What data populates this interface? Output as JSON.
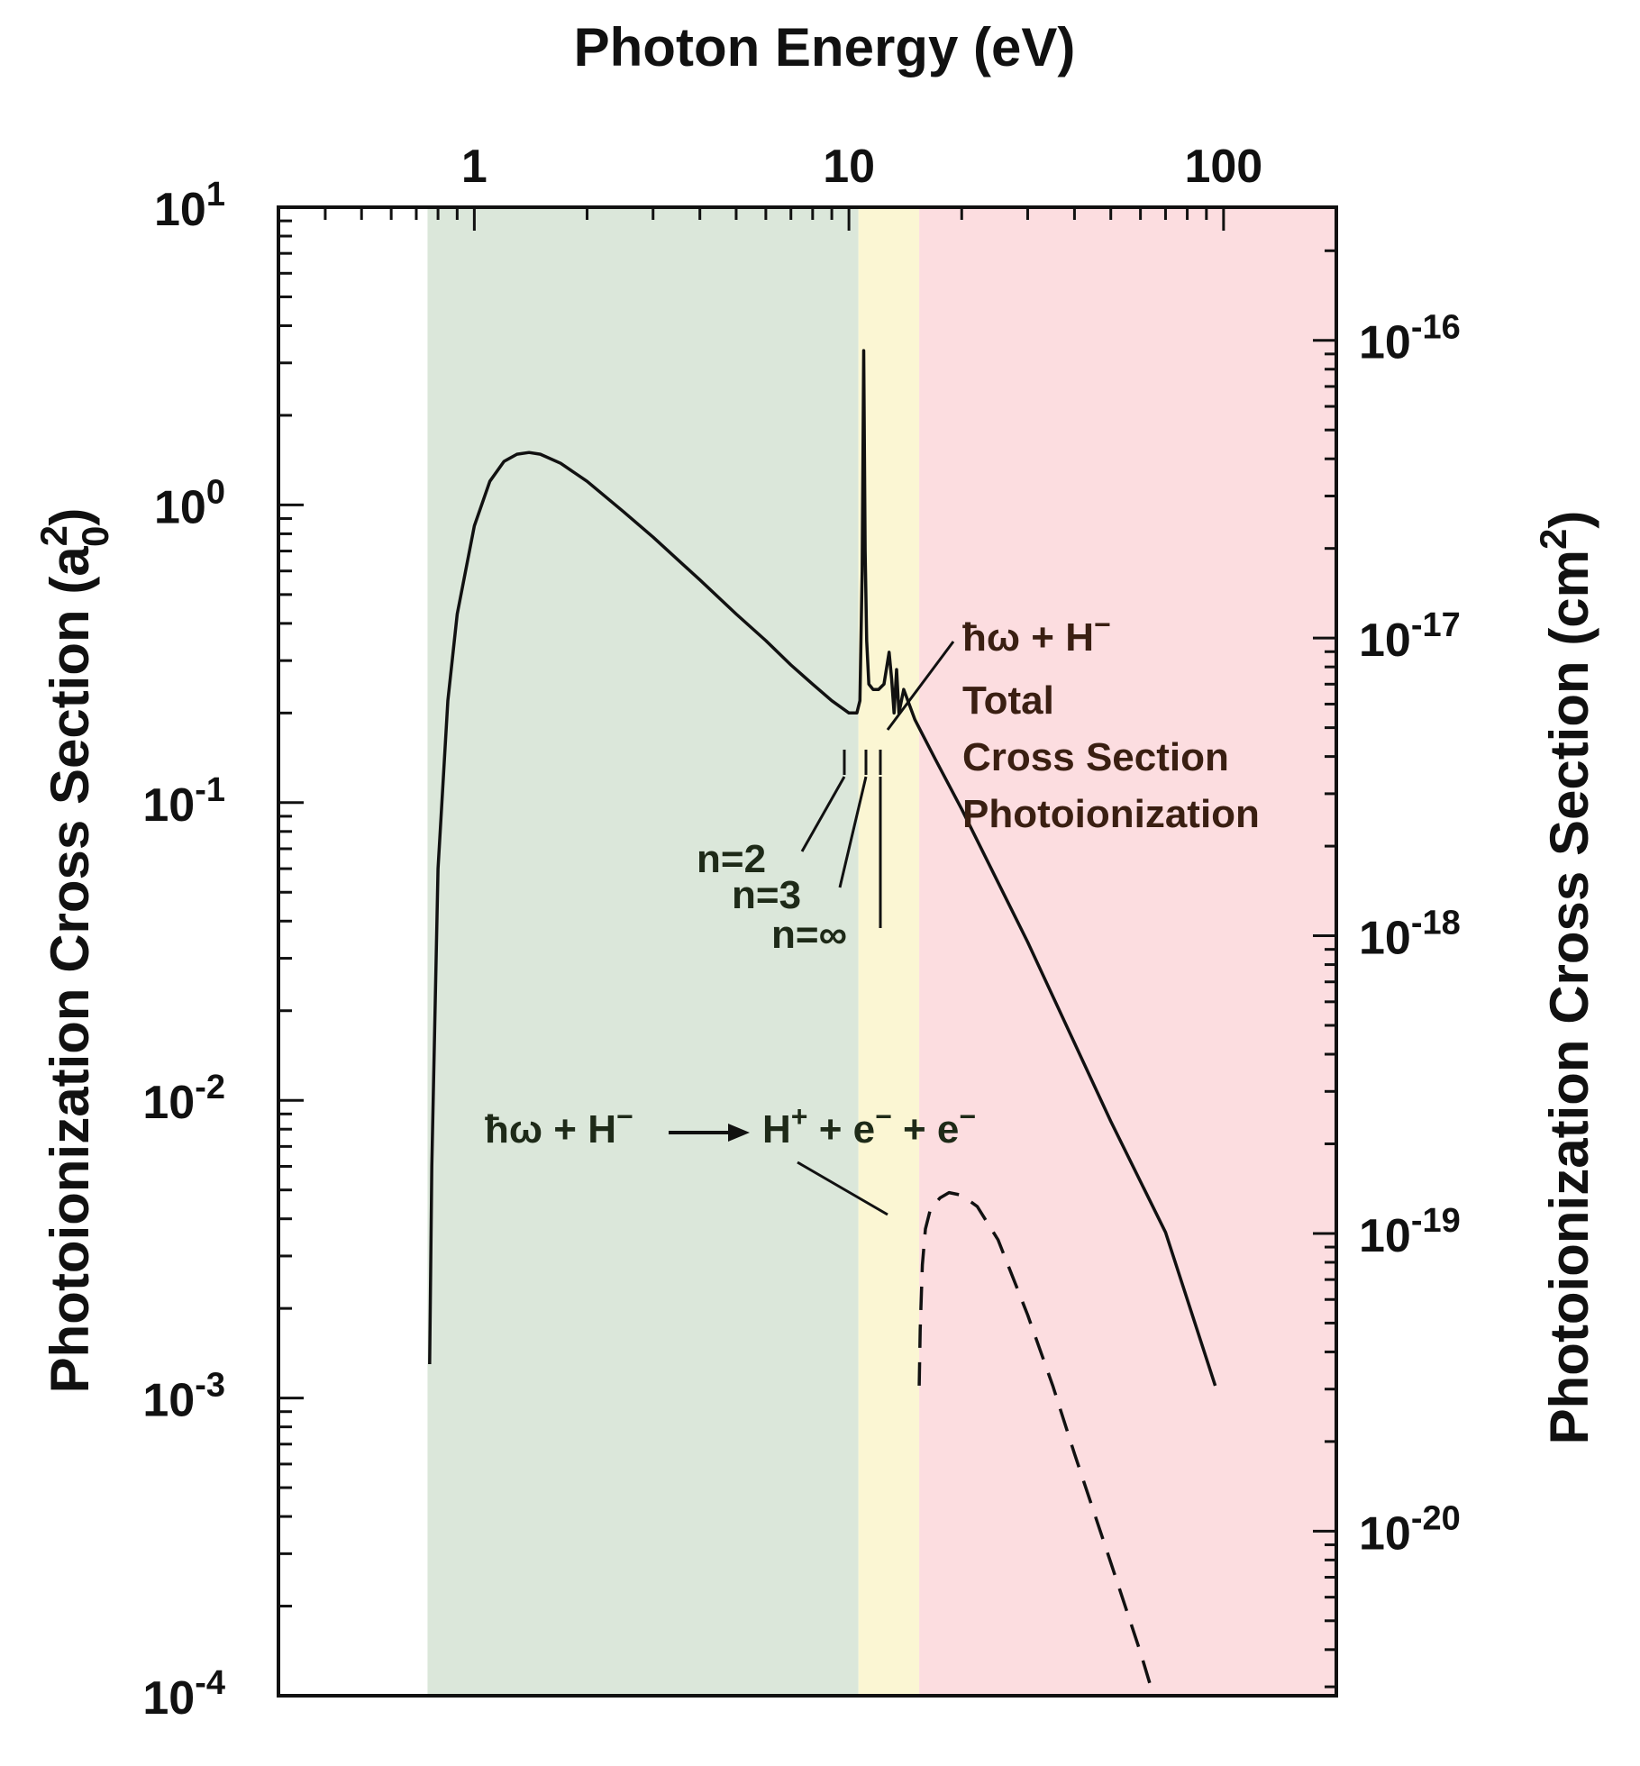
{
  "chart_data": {
    "type": "line",
    "title": "Photon Energy (eV)",
    "xlabel": "Photon Energy (eV)",
    "ylabel_left_main": "Photoionization Cross Section (a",
    "ylabel_left_sup": "2",
    "ylabel_left_sub": "0",
    "ylabel_left_close": ")",
    "ylabel_right_main": "Photoionization Cross Section (cm",
    "ylabel_right_sup": "2",
    "ylabel_right_close": ")",
    "x_scale": "log",
    "y_scale": "log",
    "xlim": [
      0.3,
      200
    ],
    "ylim_left": [
      0.0001,
      10
    ],
    "ylim_right": [
      2.8e-21,
      2.8e-16
    ],
    "x_ticks": [
      {
        "value": 1,
        "label": "1"
      },
      {
        "value": 10,
        "label": "10"
      },
      {
        "value": 100,
        "label": "100"
      }
    ],
    "y_left_ticks": [
      {
        "value": 10,
        "base": "10",
        "exp": "1"
      },
      {
        "value": 1,
        "base": "10",
        "exp": "0"
      },
      {
        "value": 0.1,
        "base": "10",
        "exp": "-1"
      },
      {
        "value": 0.01,
        "base": "10",
        "exp": "-2"
      },
      {
        "value": 0.001,
        "base": "10",
        "exp": "-3"
      },
      {
        "value": 0.0001,
        "base": "10",
        "exp": "-4"
      }
    ],
    "y_right_ticks": [
      {
        "value": 1e-16,
        "base": "10",
        "exp": "-16"
      },
      {
        "value": 1e-17,
        "base": "10",
        "exp": "-17"
      },
      {
        "value": 1e-18,
        "base": "10",
        "exp": "-18"
      },
      {
        "value": 1e-19,
        "base": "10",
        "exp": "-19"
      },
      {
        "value": 1e-20,
        "base": "10",
        "exp": "-20"
      }
    ],
    "regions": [
      {
        "x0": 0.75,
        "x1": 10.6,
        "color": "#dbe7da"
      },
      {
        "x0": 10.6,
        "x1": 15.4,
        "color": "#fbf6d3"
      },
      {
        "x0": 15.4,
        "x1": 200,
        "color": "#fcdde0"
      }
    ],
    "series": [
      {
        "style": "solid",
        "x": [
          0.76,
          0.77,
          0.8,
          0.85,
          0.9,
          1.0,
          1.1,
          1.2,
          1.3,
          1.4,
          1.5,
          1.7,
          2.0,
          2.5,
          3.0,
          4.0,
          5.0,
          6.0,
          7.0,
          8.0,
          9.0,
          10.0,
          10.5,
          10.7,
          10.85,
          10.95,
          11.05,
          11.15,
          11.3,
          11.6,
          12.0,
          12.4,
          12.8,
          13.0,
          13.2,
          13.4,
          13.6,
          14.0,
          15.0,
          17.0,
          20.0,
          30.0,
          50.0,
          70.0,
          95.0
        ],
        "y": [
          0.0013,
          0.006,
          0.06,
          0.22,
          0.43,
          0.85,
          1.2,
          1.4,
          1.48,
          1.5,
          1.48,
          1.38,
          1.2,
          0.95,
          0.78,
          0.56,
          0.43,
          0.35,
          0.29,
          0.25,
          0.22,
          0.2,
          0.2,
          0.22,
          0.6,
          3.3,
          0.7,
          0.35,
          0.25,
          0.24,
          0.24,
          0.25,
          0.32,
          0.26,
          0.2,
          0.28,
          0.2,
          0.24,
          0.19,
          0.14,
          0.095,
          0.034,
          0.0085,
          0.0036,
          0.0011
        ]
      },
      {
        "style": "dashed",
        "x": [
          15.4,
          15.5,
          15.7,
          16.0,
          16.5,
          17.5,
          18.5,
          20.0,
          22.0,
          25.0,
          30.0,
          35.0,
          40.0,
          50.0,
          60.0,
          65.0
        ],
        "y": [
          0.0011,
          0.0017,
          0.0028,
          0.0037,
          0.0043,
          0.0047,
          0.0049,
          0.0048,
          0.0044,
          0.0034,
          0.0019,
          0.0011,
          0.00065,
          0.00028,
          0.00014,
          0.0001
        ]
      }
    ],
    "annotations": {
      "total_line1_hbar": "ħ",
      "total_line1_rest": "ω + H",
      "total_line1_sup": "−",
      "total_line2": "Total",
      "total_line3": "Cross Section",
      "total_line4": "Photoionization",
      "n2": "n=2",
      "n3": "n=3",
      "ninf": "n=∞",
      "double_hbar": "ħ",
      "double_a": "ω + H",
      "double_a_sup": "−",
      "double_b": "H",
      "double_b_sup": "+",
      "double_c": " + e",
      "double_c_sup": "−",
      "double_d": " + e",
      "double_d_sup": "−"
    }
  }
}
